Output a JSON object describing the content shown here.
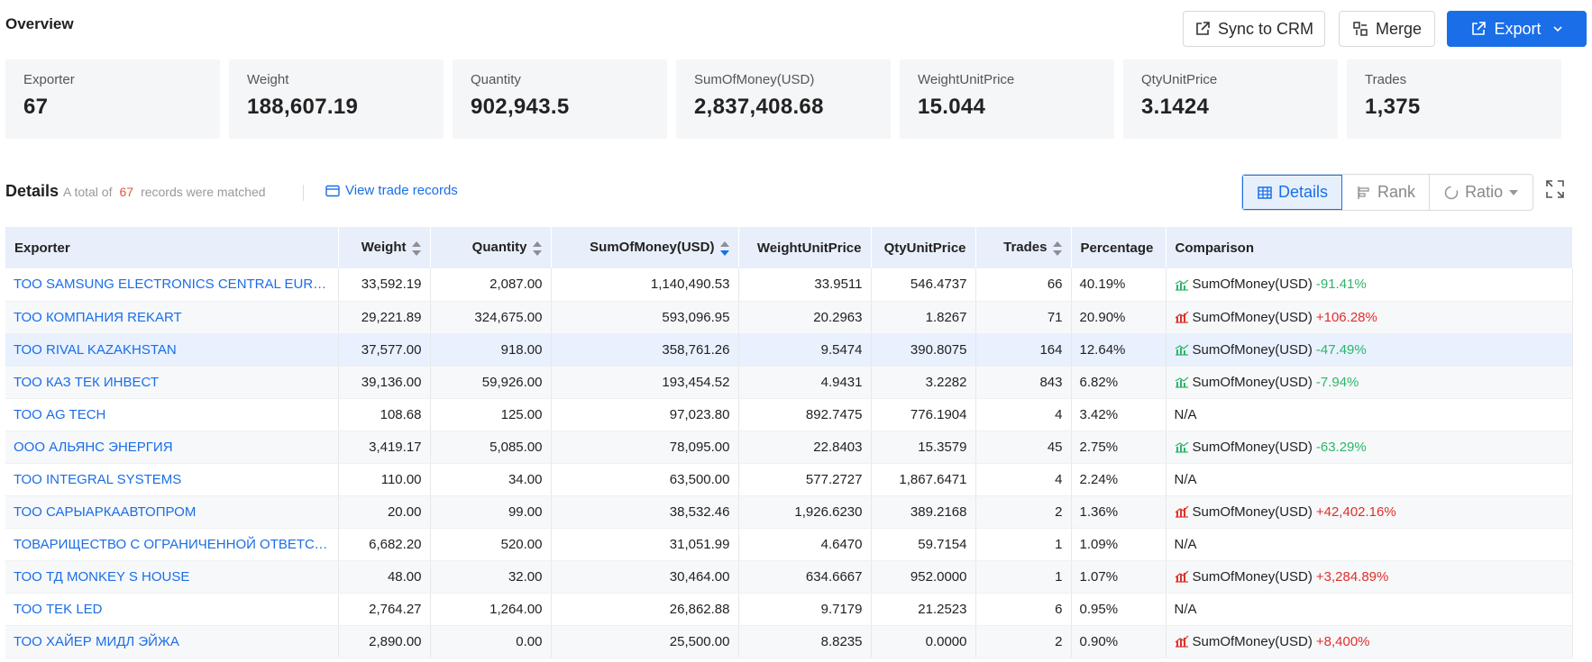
{
  "header": {
    "title": "Overview",
    "sync_label": "Sync to CRM",
    "merge_label": "Merge",
    "export_label": "Export"
  },
  "summary": [
    {
      "label": "Exporter",
      "value": "67"
    },
    {
      "label": "Weight",
      "value": "188,607.19"
    },
    {
      "label": "Quantity",
      "value": "902,943.5"
    },
    {
      "label": "SumOfMoney(USD)",
      "value": "2,837,408.68"
    },
    {
      "label": "WeightUnitPrice",
      "value": "15.044"
    },
    {
      "label": "QtyUnitPrice",
      "value": "3.1424"
    },
    {
      "label": "Trades",
      "value": "1,375"
    }
  ],
  "details": {
    "title": "Details",
    "sub_prefix": "A total of",
    "count": "67",
    "sub_suffix": "records were matched",
    "view_link": "View trade records",
    "tabs": [
      "Details",
      "Rank",
      "Ratio"
    ]
  },
  "table": {
    "columns": [
      "Exporter",
      "Weight",
      "Quantity",
      "SumOfMoney(USD)",
      "WeightUnitPrice",
      "QtyUnitPrice",
      "Trades",
      "Percentage",
      "Comparison"
    ],
    "rows": [
      {
        "name": "ТОО SAMSUNG ELECTRONICS CENTRAL EURASIA САМСУНГ ЭЛЕКТРОНИКС",
        "weight": "33,592.19",
        "qty": "2,087.00",
        "sum": "1,140,490.53",
        "wup": "33.9511",
        "qup": "546.4737",
        "trades": "66",
        "pct": "40.19%",
        "cmp_label": "SumOfMoney(USD)",
        "cmp_value": "-91.41%",
        "dir": "neg"
      },
      {
        "name": "ТОО КОМПАНИЯ REKART",
        "weight": "29,221.89",
        "qty": "324,675.00",
        "sum": "593,096.95",
        "wup": "20.2963",
        "qup": "1.8267",
        "trades": "71",
        "pct": "20.90%",
        "cmp_label": "SumOfMoney(USD)",
        "cmp_value": "+106.28%",
        "dir": "pos"
      },
      {
        "name": "ТОО RIVAL KAZAKHSTAN",
        "weight": "37,577.00",
        "qty": "918.00",
        "sum": "358,761.26",
        "wup": "9.5474",
        "qup": "390.8075",
        "trades": "164",
        "pct": "12.64%",
        "cmp_label": "SumOfMoney(USD)",
        "cmp_value": "-47.49%",
        "dir": "neg"
      },
      {
        "name": "ТОО КАЗ ТЕК ИНВЕСТ",
        "weight": "39,136.00",
        "qty": "59,926.00",
        "sum": "193,454.52",
        "wup": "4.9431",
        "qup": "3.2282",
        "trades": "843",
        "pct": "6.82%",
        "cmp_label": "SumOfMoney(USD)",
        "cmp_value": "-7.94%",
        "dir": "neg"
      },
      {
        "name": "ТОО AG TECH",
        "weight": "108.68",
        "qty": "125.00",
        "sum": "97,023.80",
        "wup": "892.7475",
        "qup": "776.1904",
        "trades": "4",
        "pct": "3.42%",
        "cmp_label": "N/A",
        "cmp_value": "",
        "dir": "none"
      },
      {
        "name": "ООО АЛЬЯНС ЭНЕРГИЯ",
        "weight": "3,419.17",
        "qty": "5,085.00",
        "sum": "78,095.00",
        "wup": "22.8403",
        "qup": "15.3579",
        "trades": "45",
        "pct": "2.75%",
        "cmp_label": "SumOfMoney(USD)",
        "cmp_value": "-63.29%",
        "dir": "neg"
      },
      {
        "name": "ТОО INTEGRAL SYSTEMS",
        "weight": "110.00",
        "qty": "34.00",
        "sum": "63,500.00",
        "wup": "577.2727",
        "qup": "1,867.6471",
        "trades": "4",
        "pct": "2.24%",
        "cmp_label": "N/A",
        "cmp_value": "",
        "dir": "none"
      },
      {
        "name": "ТОО САРЫАРКААВТОПРОМ",
        "weight": "20.00",
        "qty": "99.00",
        "sum": "38,532.46",
        "wup": "1,926.6230",
        "qup": "389.2168",
        "trades": "2",
        "pct": "1.36%",
        "cmp_label": "SumOfMoney(USD)",
        "cmp_value": "+42,402.16%",
        "dir": "pos"
      },
      {
        "name": "ТОВАРИЩЕСТВО С ОГРАНИЧЕННОЙ ОТВЕТСТВЕННОСТЬЮ",
        "weight": "6,682.20",
        "qty": "520.00",
        "sum": "31,051.99",
        "wup": "4.6470",
        "qup": "59.7154",
        "trades": "1",
        "pct": "1.09%",
        "cmp_label": "N/A",
        "cmp_value": "",
        "dir": "none"
      },
      {
        "name": "ТОО ТД MONKEY S HOUSE",
        "weight": "48.00",
        "qty": "32.00",
        "sum": "30,464.00",
        "wup": "634.6667",
        "qup": "952.0000",
        "trades": "1",
        "pct": "1.07%",
        "cmp_label": "SumOfMoney(USD)",
        "cmp_value": "+3,284.89%",
        "dir": "pos"
      },
      {
        "name": "ТОО TEK LED",
        "weight": "2,764.27",
        "qty": "1,264.00",
        "sum": "26,862.88",
        "wup": "9.7179",
        "qup": "21.2523",
        "trades": "6",
        "pct": "0.95%",
        "cmp_label": "N/A",
        "cmp_value": "",
        "dir": "none"
      },
      {
        "name": "ТОО ХАЙЕР МИДЛ ЭЙЖА",
        "weight": "2,890.00",
        "qty": "0.00",
        "sum": "25,500.00",
        "wup": "8.8235",
        "qup": "0.0000",
        "trades": "2",
        "pct": "0.90%",
        "cmp_label": "SumOfMoney(USD)",
        "cmp_value": "+8,400%",
        "dir": "pos"
      }
    ]
  },
  "colors": {
    "accent": "#1a6ee8",
    "positive": "#e0302a",
    "negative": "#2db56a",
    "count": "#e2553c"
  }
}
